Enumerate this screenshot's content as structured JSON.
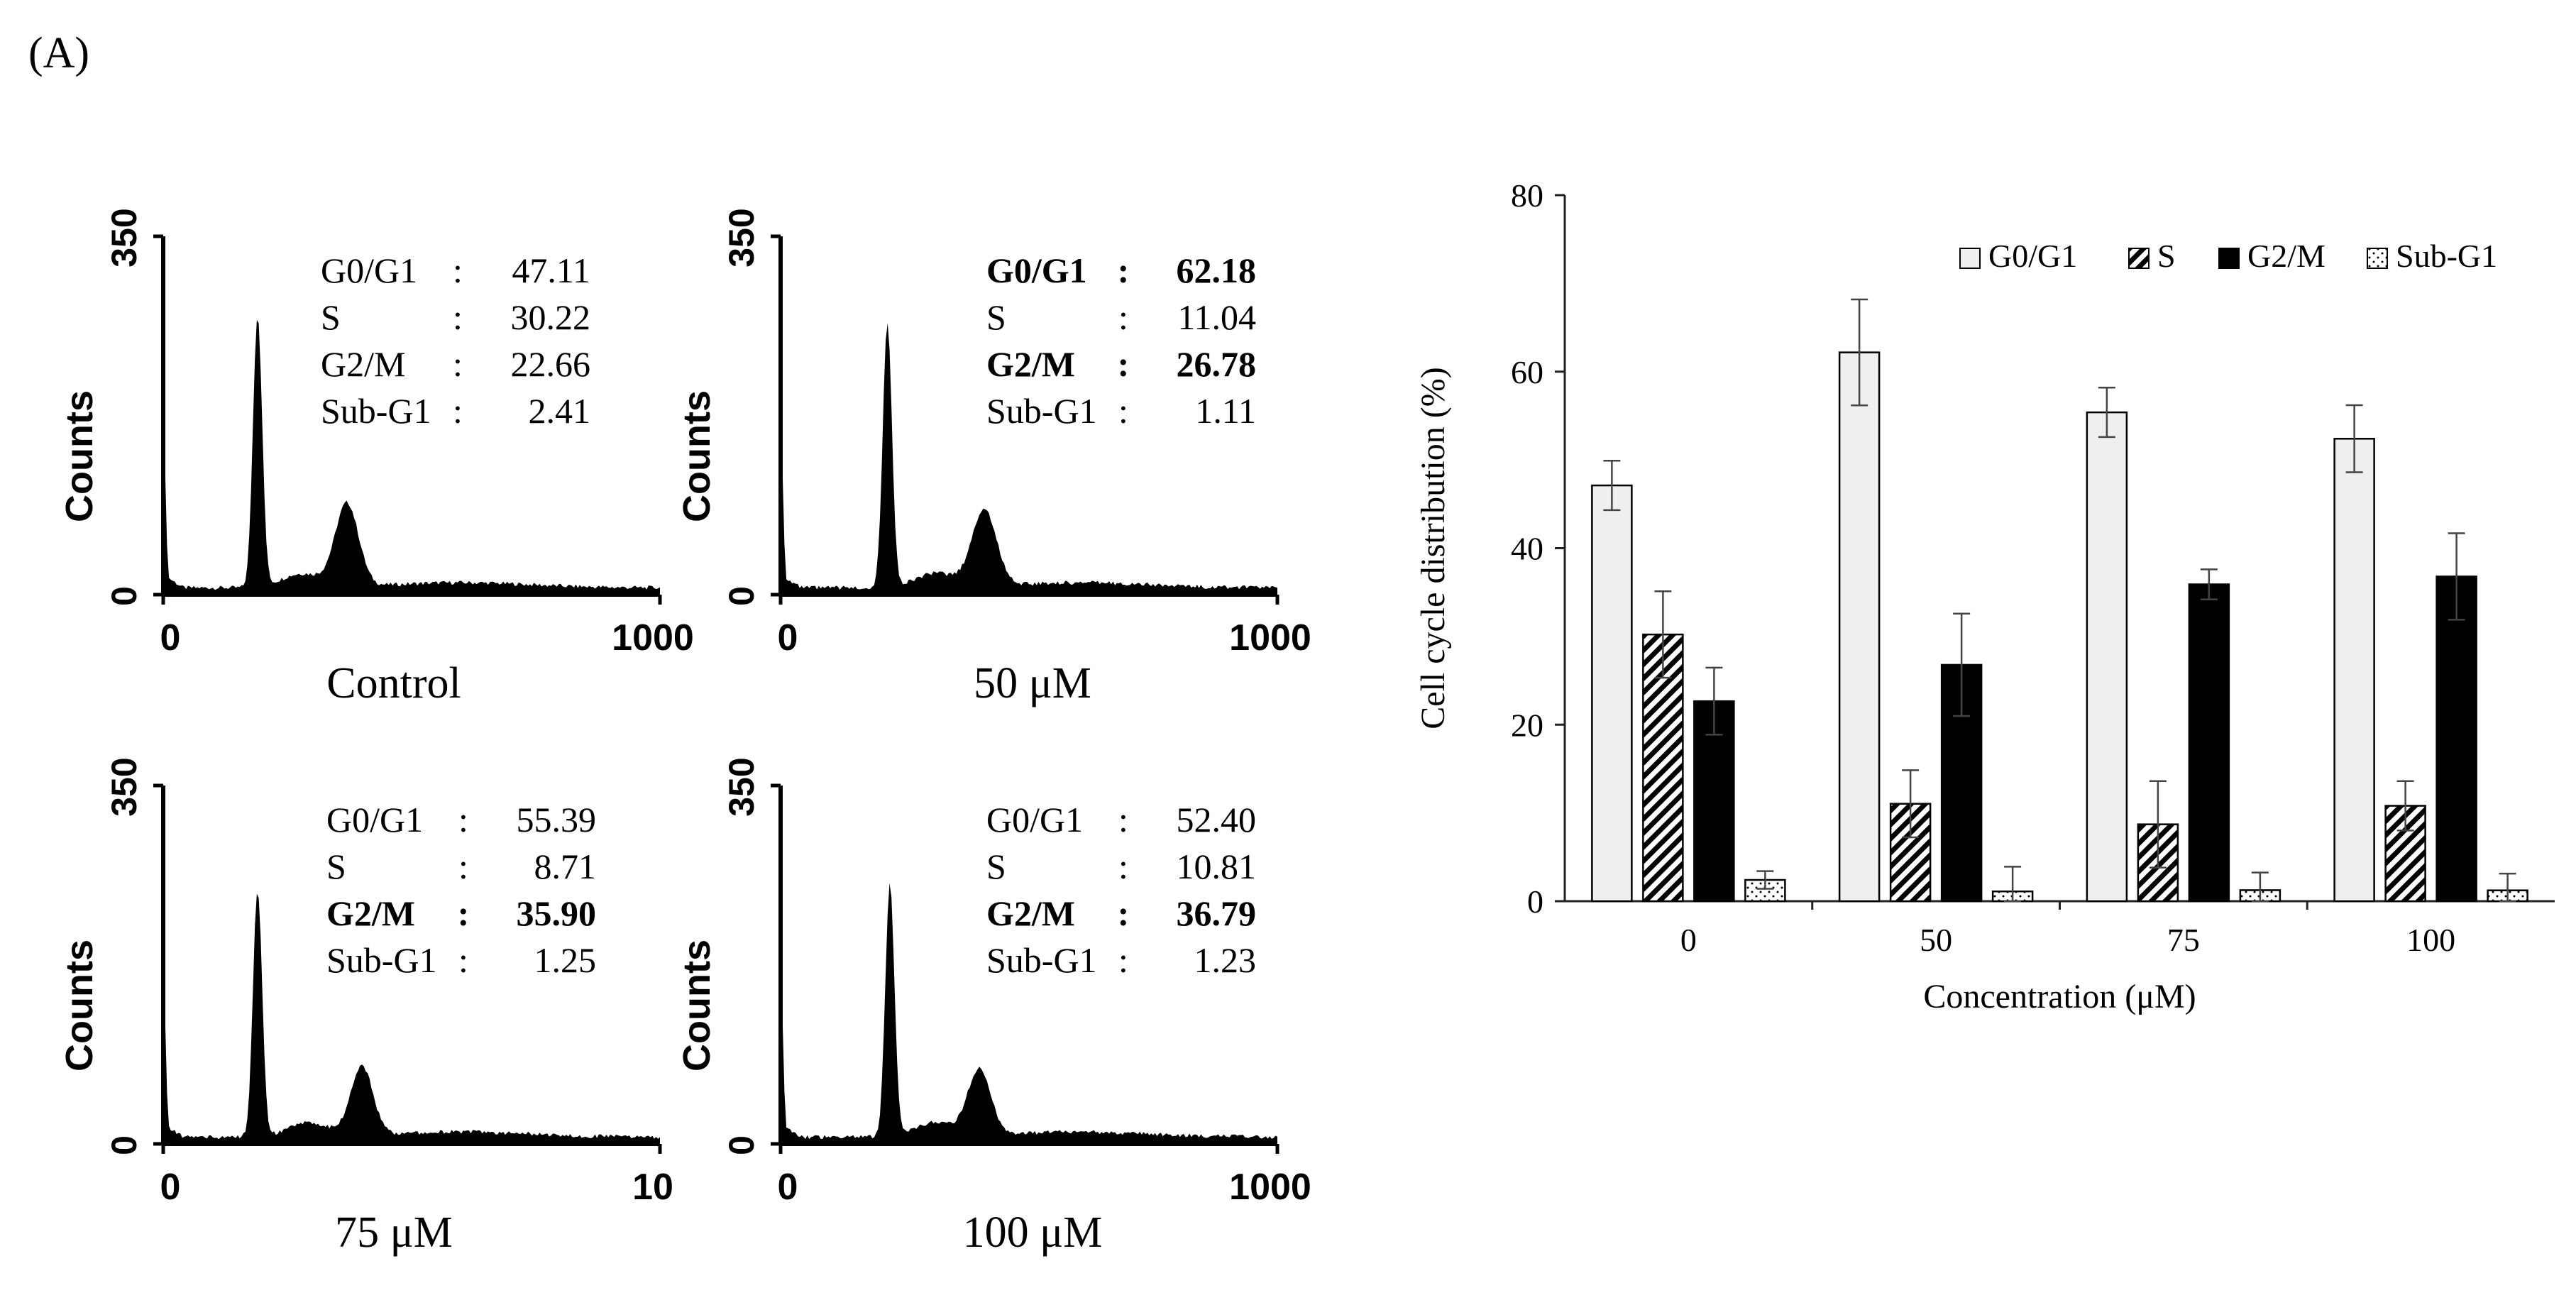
{
  "panel_label": "(A)",
  "histograms": [
    {
      "caption": "Control",
      "y_axis_label": "Counts",
      "y_ticks": [
        "0",
        "350"
      ],
      "x_ticks": [
        "0",
        "1000"
      ],
      "rows": [
        {
          "name": "G0/G1",
          "sep": ":",
          "value": "47.11",
          "bold": false
        },
        {
          "name": "S",
          "sep": ":",
          "value": "30.22",
          "bold": false
        },
        {
          "name": "G2/M",
          "sep": ":",
          "value": "22.66",
          "bold": false
        },
        {
          "name": "Sub-G1",
          "sep": ":",
          "value": "2.41",
          "bold": false
        }
      ]
    },
    {
      "caption": "50 μM",
      "y_axis_label": "Counts",
      "y_ticks": [
        "0",
        "350"
      ],
      "x_ticks": [
        "0",
        "1000"
      ],
      "rows": [
        {
          "name": "G0/G1",
          "sep": ":",
          "value": "62.18",
          "bold": true
        },
        {
          "name": "S",
          "sep": ":",
          "value": "11.04",
          "bold": false
        },
        {
          "name": "G2/M",
          "sep": ":",
          "value": "26.78",
          "bold": true
        },
        {
          "name": "Sub-G1",
          "sep": ":",
          "value": "1.11",
          "bold": false
        }
      ]
    },
    {
      "caption": "75 μM",
      "y_axis_label": "Counts",
      "y_ticks": [
        "0",
        "350"
      ],
      "x_ticks": [
        "0",
        "10"
      ],
      "rows": [
        {
          "name": "G0/G1",
          "sep": ":",
          "value": "55.39",
          "bold": false
        },
        {
          "name": "S",
          "sep": ":",
          "value": "8.71",
          "bold": false
        },
        {
          "name": "G2/M",
          "sep": ":",
          "value": "35.90",
          "bold": true
        },
        {
          "name": "Sub-G1",
          "sep": ":",
          "value": "1.25",
          "bold": false
        }
      ]
    },
    {
      "caption": "100 μM",
      "y_axis_label": "Counts",
      "y_ticks": [
        "0",
        "350"
      ],
      "x_ticks": [
        "0",
        "1000"
      ],
      "rows": [
        {
          "name": "G0/G1",
          "sep": ":",
          "value": "52.40",
          "bold": false
        },
        {
          "name": "S",
          "sep": ":",
          "value": "10.81",
          "bold": false
        },
        {
          "name": "G2/M",
          "sep": ":",
          "value": "36.79",
          "bold": true
        },
        {
          "name": "Sub-G1",
          "sep": ":",
          "value": "1.23",
          "bold": false
        }
      ]
    }
  ],
  "chart_data": {
    "type": "bar",
    "title": "",
    "xlabel": "Concentration (μM)",
    "ylabel": "Cell cycle distribution (%)",
    "categories": [
      "0",
      "50",
      "75",
      "100"
    ],
    "ylim": [
      0,
      80
    ],
    "yticks": [
      0,
      20,
      40,
      60,
      80
    ],
    "grid": false,
    "legend": "top-right",
    "series": [
      {
        "name": "G0/G1",
        "pattern": "light-gray",
        "values": [
          47.11,
          62.18,
          55.39,
          52.4
        ],
        "errors": [
          2.8,
          6.0,
          2.8,
          3.8
        ]
      },
      {
        "name": "S",
        "pattern": "diagonal-hatch",
        "values": [
          30.22,
          11.04,
          8.71,
          10.81
        ],
        "errors": [
          4.9,
          3.8,
          4.9,
          2.8
        ]
      },
      {
        "name": "G2/M",
        "pattern": "solid-black",
        "values": [
          22.66,
          26.78,
          35.9,
          36.79
        ],
        "errors": [
          3.8,
          5.8,
          1.7,
          4.9
        ]
      },
      {
        "name": "Sub-G1",
        "pattern": "dotted",
        "values": [
          2.41,
          1.11,
          1.25,
          1.23
        ],
        "errors": [
          1.0,
          2.8,
          2.0,
          1.9
        ]
      }
    ],
    "colors": {
      "light": "#efefef",
      "dark": "#000000",
      "axis": "#222222"
    }
  }
}
